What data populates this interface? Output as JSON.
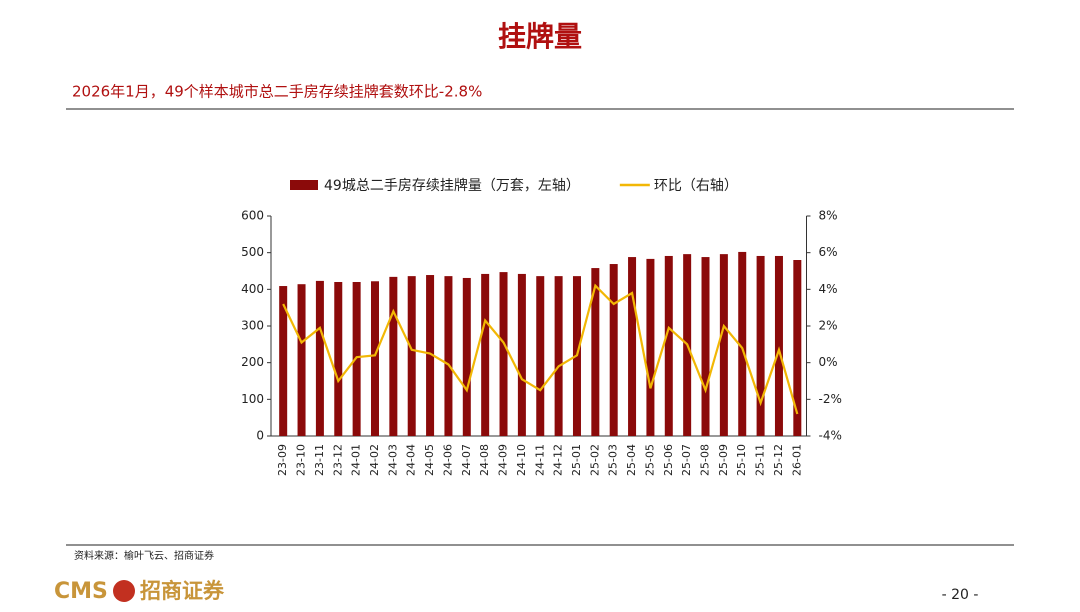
{
  "header": {
    "title": "挂牌量",
    "subtitle": "2026年1月，49个样本城市总二手房存续挂牌套数环比-2.8%"
  },
  "chart_data": {
    "type": "bar_line",
    "categories": [
      "23-09",
      "23-10",
      "23-11",
      "23-12",
      "24-01",
      "24-02",
      "24-03",
      "24-04",
      "24-05",
      "24-06",
      "24-07",
      "24-08",
      "24-09",
      "24-10",
      "24-11",
      "24-12",
      "25-01",
      "25-02",
      "25-03",
      "25-04",
      "25-05",
      "25-06",
      "25-07",
      "25-08",
      "25-09",
      "25-10",
      "25-11",
      "25-12",
      "26-01"
    ],
    "series": [
      {
        "name": "49城总二手房存续挂牌量（万套，左轴）",
        "color": "#8b0a0a",
        "type": "bar",
        "values": [
          409,
          414,
          423,
          420,
          420,
          422,
          434,
          436,
          439,
          436,
          431,
          442,
          447,
          442,
          436,
          436,
          436,
          458,
          469,
          488,
          483,
          491,
          496,
          488,
          496,
          502,
          491,
          491,
          480
        ]
      },
      {
        "name": "环比（右轴）",
        "color": "#f2b705",
        "type": "line",
        "axis": "y2",
        "values": [
          3.2,
          1.1,
          1.9,
          -1.0,
          0.3,
          0.4,
          2.8,
          0.7,
          0.5,
          -0.1,
          -1.5,
          2.3,
          1.1,
          -0.9,
          -1.5,
          -0.2,
          0.4,
          4.2,
          3.2,
          3.8,
          -1.4,
          1.9,
          1.0,
          -1.5,
          2.0,
          0.8,
          -2.2,
          0.7,
          -2.8
        ]
      }
    ],
    "ylim": [
      0,
      600
    ],
    "yticks": [
      0,
      100,
      200,
      300,
      400,
      500,
      600
    ],
    "y2lim": [
      -4,
      8
    ],
    "y2ticks": [
      {
        "value": -4,
        "label": "-4%"
      },
      {
        "value": -2,
        "label": "-2%"
      },
      {
        "value": 0,
        "label": "0%"
      },
      {
        "value": 2,
        "label": "2%"
      },
      {
        "value": 4,
        "label": "4%"
      },
      {
        "value": 6,
        "label": "6%"
      },
      {
        "value": 8,
        "label": "8%"
      }
    ],
    "grid": false,
    "legend": "top"
  },
  "footer": {
    "source": "资料来源：榆叶飞云、招商证券",
    "logo_en": "CMS",
    "logo_cn": "招商证券",
    "page": "- 20 -"
  }
}
